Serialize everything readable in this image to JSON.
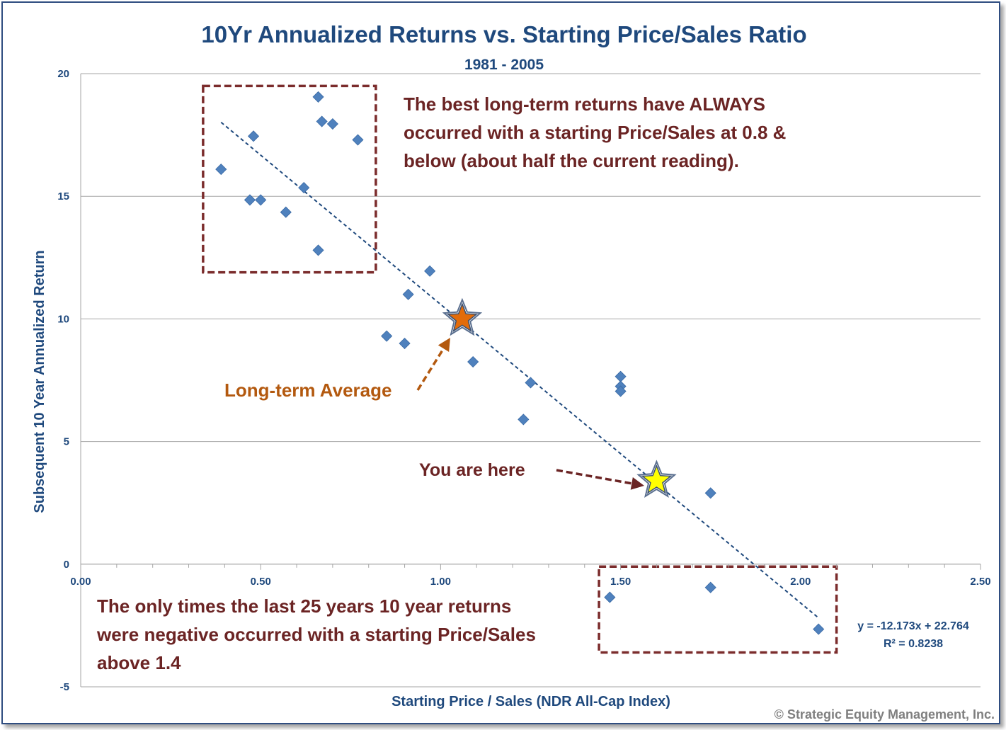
{
  "chart_data": {
    "type": "scatter",
    "title": "10Yr Annualized Returns vs. Starting Price/Sales Ratio",
    "subtitle": "1981 - 2005",
    "xlabel": "Starting Price / Sales (NDR All-Cap Index)",
    "ylabel": "Subsequent 10 Year Annualized Return",
    "xlim": [
      0,
      2.5
    ],
    "ylim": [
      -5,
      20
    ],
    "x_ticks": [
      "0.00",
      "0.50",
      "1.00",
      "1.50",
      "2.00",
      "2.50"
    ],
    "y_ticks": [
      "-5",
      "0",
      "5",
      "10",
      "15",
      "20"
    ],
    "grid": "horizontal",
    "points": [
      {
        "x": 0.39,
        "y": 16.1
      },
      {
        "x": 0.47,
        "y": 14.85
      },
      {
        "x": 0.48,
        "y": 17.45
      },
      {
        "x": 0.5,
        "y": 14.85
      },
      {
        "x": 0.57,
        "y": 14.35
      },
      {
        "x": 0.62,
        "y": 15.35
      },
      {
        "x": 0.66,
        "y": 19.05
      },
      {
        "x": 0.66,
        "y": 12.8
      },
      {
        "x": 0.67,
        "y": 18.05
      },
      {
        "x": 0.7,
        "y": 17.95
      },
      {
        "x": 0.77,
        "y": 17.3
      },
      {
        "x": 0.85,
        "y": 9.3
      },
      {
        "x": 0.9,
        "y": 9.0
      },
      {
        "x": 0.91,
        "y": 11.0
      },
      {
        "x": 0.97,
        "y": 11.95
      },
      {
        "x": 1.09,
        "y": 8.25
      },
      {
        "x": 1.23,
        "y": 5.9
      },
      {
        "x": 1.25,
        "y": 7.4
      },
      {
        "x": 1.47,
        "y": -1.35
      },
      {
        "x": 1.5,
        "y": 7.65
      },
      {
        "x": 1.5,
        "y": 7.25
      },
      {
        "x": 1.5,
        "y": 7.05
      },
      {
        "x": 1.75,
        "y": 2.9
      },
      {
        "x": 1.75,
        "y": -0.95
      },
      {
        "x": 2.05,
        "y": -2.65
      }
    ],
    "trendline": {
      "slope": -12.173,
      "intercept": 22.764,
      "x_range": [
        0.39,
        2.05
      ]
    },
    "trendline_equation": "y = -12.173x + 22.764",
    "r_squared": "R² = 0.8238",
    "markers": [
      {
        "name": "long-term-average",
        "x": 1.06,
        "y": 10.0,
        "color": "#e36c0a"
      },
      {
        "name": "you-are-here",
        "x": 1.6,
        "y": 3.4,
        "color": "#ffff00"
      }
    ],
    "annotations": {
      "best_returns": [
        "The best long-term returns have ALWAYS",
        "occurred with a starting Price/Sales at 0.8 &",
        "below (about half the current reading)."
      ],
      "negative_returns": [
        "The only times the last 25 years 10 year returns",
        "were negative occurred with a starting Price/Sales",
        "above 1.4"
      ],
      "long_term_average": "Long-term Average",
      "you_are_here": "You are here"
    },
    "highlight_boxes": [
      {
        "name": "low-ps-box",
        "x_range": [
          0.34,
          0.82
        ],
        "y_range": [
          11.9,
          19.5
        ]
      },
      {
        "name": "high-ps-box",
        "x_range": [
          1.44,
          2.1
        ],
        "y_range": [
          -3.6,
          -0.1
        ]
      }
    ],
    "colors": {
      "points": "#4f81bd",
      "trendline": "#1f497d",
      "text": "#1f497d",
      "annotation": "#6b2424",
      "avg_label": "#b3590f",
      "box_border": "#7b2c2c"
    }
  },
  "copyright": "© Strategic Equity Management, Inc."
}
